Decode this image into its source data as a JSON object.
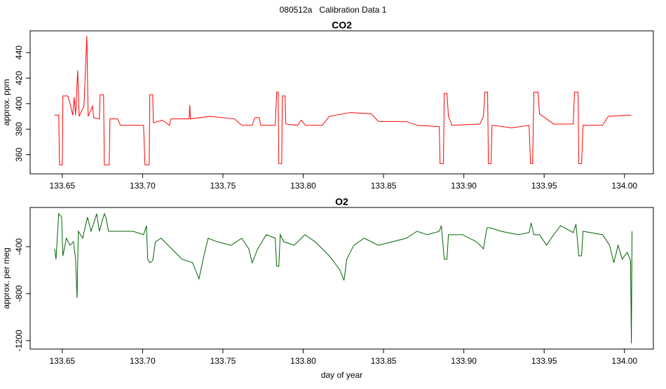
{
  "title": "080512a   Calibration Data 1",
  "chart_data": [
    {
      "type": "line",
      "title": "CO2",
      "ylabel": "approx. ppm",
      "color": "#ff0000",
      "xlim": [
        133.63,
        134.018
      ],
      "xticks": [
        133.65,
        {
          "value": 133.7,
          "label": "133.70"
        },
        133.75,
        {
          "value": 133.8,
          "label": "133.80"
        },
        133.85,
        {
          "value": 133.9,
          "label": "133.90"
        },
        133.95,
        {
          "value": 134,
          "label": "134.00"
        }
      ],
      "ylim": [
        345,
        457
      ],
      "yticks": [
        360,
        380,
        400,
        420,
        440
      ],
      "x": [
        133.6452,
        133.6478,
        133.6483,
        133.65,
        133.6504,
        133.6535,
        133.6548,
        133.6565,
        133.6574,
        133.6583,
        133.6596,
        133.6605,
        133.6635,
        133.6653,
        133.6661,
        133.6688,
        133.6696,
        133.6731,
        133.6736,
        133.6757,
        133.6762,
        133.6792,
        133.6797,
        133.6845,
        133.6862,
        133.7006,
        133.7015,
        133.7041,
        133.7045,
        133.7063,
        133.7067,
        133.7124,
        133.7168,
        133.7176,
        133.729,
        133.7294,
        133.7298,
        133.7421,
        133.7573,
        133.7617,
        133.7682,
        133.77,
        133.7726,
        133.7735,
        133.7826,
        133.7835,
        133.7844,
        133.7848,
        133.7866,
        133.787,
        133.7887,
        133.7892,
        133.7966,
        133.7988,
        133.8014,
        133.8119,
        133.8162,
        133.8293,
        133.8424,
        133.8468,
        133.8642,
        133.8708,
        133.8847,
        133.8852,
        133.8873,
        133.8878,
        133.8895,
        133.8904,
        133.8926,
        133.91,
        133.9122,
        133.9131,
        133.9148,
        133.9153,
        133.917,
        133.9175,
        133.9297,
        133.9406,
        133.9415,
        133.9428,
        133.9436,
        133.9462,
        133.9471,
        133.9559,
        133.9681,
        133.9689,
        133.9711,
        133.9716,
        133.9733,
        133.9742,
        133.9864,
        133.9899,
        134.0042
      ],
      "values": [
        391,
        391,
        352,
        352,
        406,
        406,
        400,
        391,
        405,
        391,
        426,
        390,
        398,
        453,
        390,
        398,
        389,
        388,
        407,
        407,
        352,
        352,
        388,
        388,
        383,
        383,
        352,
        352,
        407,
        407,
        385,
        387,
        383,
        388,
        388,
        399,
        388,
        390,
        388,
        383,
        383,
        389,
        389,
        383,
        383,
        409,
        409,
        353,
        353,
        406,
        406,
        384,
        383,
        387,
        383,
        383,
        390,
        393,
        392,
        386,
        386,
        383,
        382,
        353,
        353,
        408,
        408,
        390,
        383,
        384,
        390,
        409,
        409,
        353,
        353,
        383,
        381,
        383,
        353,
        353,
        409,
        409,
        392,
        384,
        384,
        409,
        409,
        353,
        353,
        383,
        383,
        390,
        391
      ]
    },
    {
      "type": "line",
      "title": "O2",
      "ylabel": "approx. per meg",
      "xlabel": "day of year",
      "color": "#006400",
      "xlim": [
        133.63,
        134.018
      ],
      "xticks": [
        133.65,
        {
          "value": 133.7,
          "label": "133.70"
        },
        133.75,
        {
          "value": 133.8,
          "label": "133.80"
        },
        133.85,
        {
          "value": 133.9,
          "label": "133.90"
        },
        133.95,
        {
          "value": 134,
          "label": "134.00"
        }
      ],
      "ylim": [
        -1272,
        -66
      ],
      "yticks": [
        -400,
        -800,
        -1200
      ],
      "x": [
        133.6452,
        133.6461,
        133.6478,
        133.6496,
        133.6504,
        133.6526,
        133.6548,
        133.657,
        133.6583,
        133.6592,
        133.66,
        133.6627,
        133.6657,
        133.6679,
        133.6701,
        133.6714,
        133.6731,
        133.6749,
        133.6762,
        133.6771,
        133.6788,
        133.6853,
        133.6941,
        133.7006,
        133.7024,
        133.7032,
        133.7045,
        133.7063,
        133.708,
        133.7115,
        133.7181,
        133.7246,
        133.7312,
        133.7351,
        133.7377,
        133.7408,
        133.7464,
        133.7551,
        133.7617,
        133.7661,
        133.7682,
        133.7717,
        133.777,
        133.7826,
        133.7835,
        133.7848,
        133.7857,
        133.7879,
        133.7944,
        133.801,
        133.8075,
        133.8162,
        133.8228,
        133.8254,
        133.8271,
        133.8315,
        133.838,
        133.8468,
        133.8555,
        133.8642,
        133.8708,
        133.8773,
        133.8847,
        133.886,
        133.8878,
        133.8895,
        133.8904,
        133.8991,
        133.9079,
        133.9122,
        133.9144,
        133.9166,
        133.9231,
        133.934,
        133.9406,
        133.9419,
        133.9436,
        133.9471,
        133.9515,
        133.9559,
        133.9602,
        133.9681,
        133.9698,
        133.9716,
        133.9733,
        133.9742,
        133.9864,
        133.9907,
        133.9934,
        133.996,
        133.9986,
        134.0017,
        134.0038,
        134.0043,
        134.0047
      ],
      "values": [
        -418,
        -507,
        -119,
        -149,
        -478,
        -328,
        -388,
        -358,
        -507,
        -836,
        -269,
        -328,
        -149,
        -269,
        -179,
        -119,
        -269,
        -179,
        -119,
        -149,
        -269,
        -269,
        -269,
        -298,
        -221,
        -507,
        -537,
        -519,
        -358,
        -328,
        -418,
        -507,
        -537,
        -675,
        -507,
        -328,
        -358,
        -388,
        -328,
        -418,
        -537,
        -418,
        -298,
        -328,
        -567,
        -567,
        -298,
        -358,
        -388,
        -298,
        -358,
        -478,
        -597,
        -687,
        -507,
        -388,
        -328,
        -388,
        -358,
        -328,
        -269,
        -298,
        -269,
        -221,
        -507,
        -507,
        -298,
        -298,
        -358,
        -418,
        -239,
        -239,
        -269,
        -298,
        -280,
        -197,
        -298,
        -298,
        -388,
        -298,
        -221,
        -280,
        -209,
        -478,
        -478,
        -269,
        -298,
        -388,
        -537,
        -388,
        -507,
        -448,
        -519,
        -1224,
        -269
      ]
    }
  ]
}
